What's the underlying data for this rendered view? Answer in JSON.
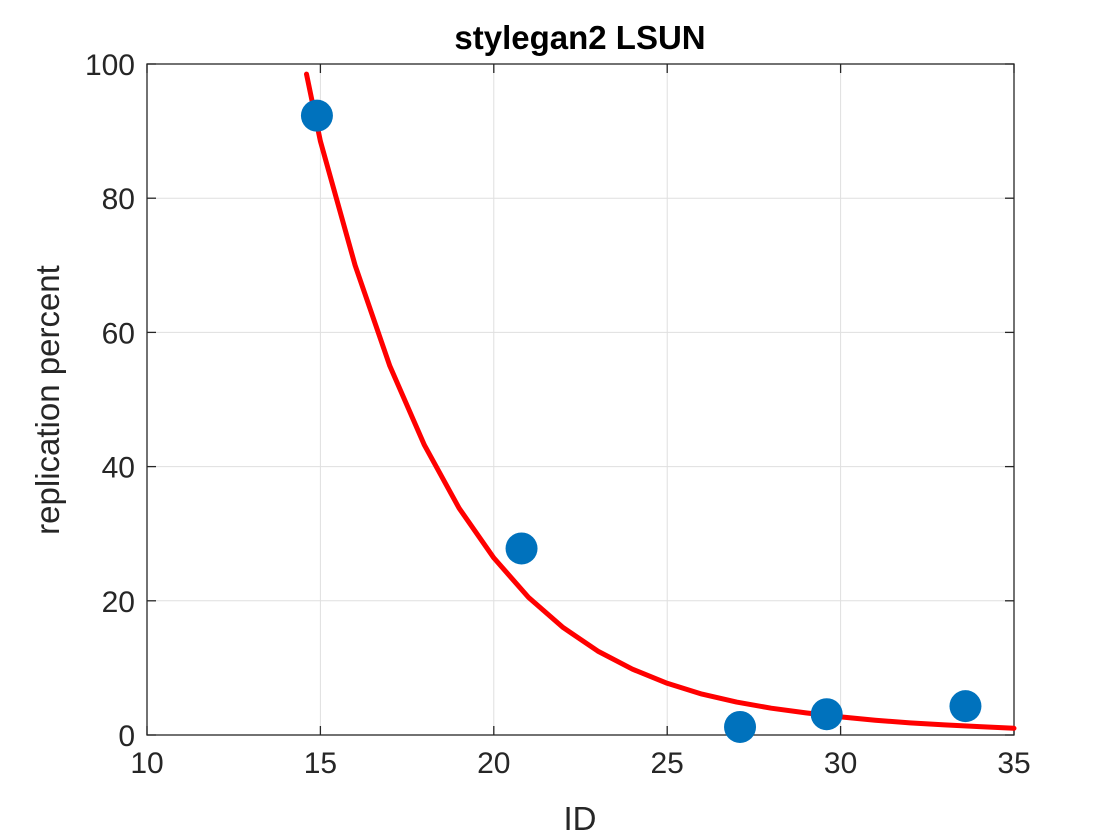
{
  "chart_data": {
    "type": "scatter",
    "title": "stylegan2 LSUN",
    "xlabel": "ID",
    "ylabel": "replication percent",
    "xlim": [
      10,
      35
    ],
    "ylim": [
      0,
      100
    ],
    "xticks": [
      "10",
      "15",
      "20",
      "25",
      "30",
      "35"
    ],
    "yticks": [
      "0",
      "20",
      "40",
      "60",
      "80",
      "100"
    ],
    "grid": true,
    "series": [
      {
        "type": "scatter",
        "color": "#0072BD",
        "x": [
          14.9,
          20.8,
          27.1,
          29.6,
          33.6
        ],
        "y": [
          92.3,
          27.8,
          1.2,
          3.1,
          4.3
        ]
      },
      {
        "type": "line",
        "color": "#FF0000",
        "x": [
          14.6,
          15,
          16,
          17,
          18,
          19,
          20,
          21,
          22,
          23,
          24,
          25,
          26,
          27,
          28,
          29,
          30,
          31,
          32,
          33,
          34,
          35
        ],
        "y": [
          98.5,
          88.5,
          70.0,
          55.0,
          43.2,
          33.8,
          26.4,
          20.5,
          16.0,
          12.5,
          9.8,
          7.7,
          6.1,
          4.9,
          4.0,
          3.3,
          2.7,
          2.2,
          1.8,
          1.5,
          1.25,
          1.0
        ]
      }
    ]
  }
}
